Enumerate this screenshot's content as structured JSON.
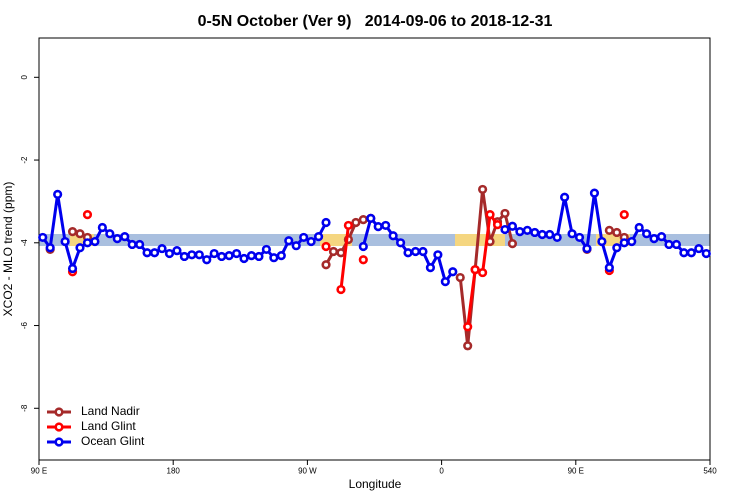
{
  "chart_data": {
    "type": "line",
    "title": "0-5N October (Ver 9)   2014-09-06 to 2018-12-31",
    "xlabel": "Longitude",
    "ylabel": "XCO2 - MLO trend (ppm)",
    "x": [
      92.5,
      97.5,
      102.5,
      107.5,
      112.5,
      117.5,
      122.5,
      127.5,
      132.5,
      137.5,
      142.5,
      147.5,
      152.5,
      157.5,
      162.5,
      167.5,
      172.5,
      177.5,
      182.5,
      187.5,
      192.5,
      197.5,
      202.5,
      207.5,
      212.5,
      217.5,
      222.5,
      227.5,
      232.5,
      237.5,
      242.5,
      247.5,
      252.5,
      257.5,
      262.5,
      267.5,
      272.5,
      277.5,
      282.5,
      287.5,
      292.5,
      297.5,
      302.5,
      307.5,
      312.5,
      317.5,
      322.5,
      327.5,
      332.5,
      337.5,
      342.5,
      347.5,
      352.5,
      357.5,
      362.5,
      367.5,
      372.5,
      377.5,
      382.5,
      387.5,
      392.5,
      397.5,
      402.5,
      407.5,
      412.5,
      417.5,
      422.5,
      427.5,
      432.5,
      437.5,
      442.5,
      447.5,
      452.5,
      457.5,
      462.5,
      467.5,
      472.5,
      477.5,
      482.5,
      487.5,
      492.5,
      497.5,
      502.5,
      507.5,
      512.5,
      517.5,
      522.5,
      527.5,
      532.5,
      537.5
    ],
    "series": [
      {
        "name": "Land Nadir",
        "color": "#a52a2a",
        "values": [
          null,
          -4.16,
          null,
          null,
          -3.73,
          -3.78,
          -3.87,
          null,
          null,
          null,
          null,
          null,
          null,
          null,
          null,
          null,
          null,
          null,
          null,
          null,
          null,
          null,
          null,
          null,
          null,
          null,
          null,
          null,
          null,
          null,
          null,
          null,
          null,
          null,
          null,
          null,
          null,
          null,
          -4.53,
          -4.21,
          -4.24,
          -3.92,
          -3.51,
          -3.44,
          -3.41,
          null,
          null,
          null,
          null,
          null,
          null,
          null,
          null,
          null,
          null,
          null,
          -4.84,
          -6.49,
          -4.65,
          -2.71,
          -3.97,
          -3.49,
          -3.29,
          -4.02,
          null,
          null,
          null,
          null,
          null,
          null,
          null,
          null,
          null,
          -4.16,
          null,
          null,
          -3.7,
          -3.75,
          -3.87,
          null,
          null,
          null,
          null,
          null,
          null,
          null,
          null,
          null,
          null,
          null
        ]
      },
      {
        "name": "Land Glint",
        "color": "#ff0000",
        "values": [
          null,
          null,
          null,
          null,
          -4.7,
          null,
          -3.32,
          null,
          null,
          null,
          null,
          null,
          null,
          null,
          null,
          null,
          null,
          null,
          null,
          null,
          null,
          null,
          null,
          null,
          null,
          null,
          null,
          null,
          null,
          null,
          null,
          null,
          null,
          null,
          null,
          null,
          null,
          null,
          -4.09,
          null,
          -5.13,
          -3.58,
          null,
          -4.41,
          null,
          null,
          null,
          null,
          null,
          null,
          null,
          null,
          null,
          null,
          null,
          null,
          null,
          -6.03,
          -4.65,
          -4.72,
          -3.32,
          -3.56,
          null,
          null,
          null,
          null,
          null,
          null,
          null,
          null,
          null,
          null,
          null,
          null,
          null,
          null,
          -4.67,
          null,
          -3.32,
          null,
          null,
          null,
          null,
          null,
          null,
          null,
          null,
          null,
          null,
          null
        ]
      },
      {
        "name": "Ocean Glint",
        "color": "#0000ee",
        "values": [
          -3.87,
          -4.12,
          -2.83,
          -3.97,
          -4.62,
          -4.12,
          -4.0,
          -3.97,
          -3.63,
          -3.78,
          -3.9,
          -3.85,
          -4.04,
          -4.04,
          -4.24,
          -4.24,
          -4.14,
          -4.26,
          -4.19,
          -4.33,
          -4.29,
          -4.29,
          -4.41,
          -4.26,
          -4.33,
          -4.31,
          -4.26,
          -4.38,
          -4.31,
          -4.33,
          -4.16,
          -4.36,
          -4.31,
          -3.95,
          -4.07,
          -3.87,
          -3.97,
          -3.85,
          -3.51,
          null,
          null,
          null,
          null,
          -4.09,
          -3.41,
          -3.61,
          -3.58,
          -3.83,
          -4.0,
          -4.24,
          -4.21,
          -4.21,
          -4.6,
          -4.29,
          -4.94,
          -4.7,
          null,
          null,
          null,
          null,
          null,
          null,
          -3.68,
          -3.6,
          -3.73,
          -3.7,
          -3.75,
          -3.8,
          -3.8,
          -3.87,
          -2.9,
          -3.78,
          -3.87,
          -4.14,
          -2.8,
          -3.97,
          -4.6,
          -4.12,
          -4.0,
          -3.97,
          -3.63,
          -3.78,
          -3.9,
          -3.85,
          -4.04,
          -4.04,
          -4.24,
          -4.24,
          -4.14,
          -4.26
        ]
      }
    ],
    "xlim": [
      90,
      540
    ],
    "xticks": [
      {
        "value": 90,
        "label": "90 E"
      },
      180,
      {
        "value": 270,
        "label": "90 W"
      },
      {
        "value": 360,
        "label": "0"
      },
      {
        "value": 450,
        "label": "90 E"
      },
      540
    ],
    "ylim": [
      -9.25,
      0.95
    ],
    "yticks": [
      0,
      -2,
      -4,
      -6,
      -8
    ],
    "legend": "bottom-left"
  }
}
